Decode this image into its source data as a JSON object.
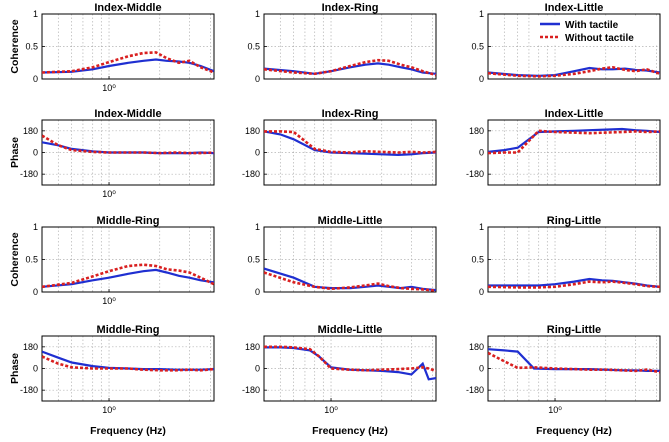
{
  "colors": {
    "with_tactile": "#1f2fd1",
    "without_tactile": "#d92020",
    "grid": "#b3b3b3",
    "axis": "#000000"
  },
  "legend": {
    "with_label": "With tactile",
    "without_label": "Without tactile",
    "placement": "top-right of Index-Little panel"
  },
  "chart_data": [
    {
      "type": "line",
      "id": "coh-index-middle",
      "title": "Index-Middle",
      "ylabel": "Coherence",
      "xlabel": "",
      "xscale": "log",
      "xlim": [
        0.4,
        4.2
      ],
      "ylim": [
        0,
        1
      ],
      "yticks": [
        0,
        0.5,
        1
      ],
      "ytick_labels": [
        "0",
        "0.5",
        "1"
      ],
      "xtick_labels": [
        "10⁰"
      ],
      "x": [
        0.4,
        0.6,
        0.8,
        1.0,
        1.3,
        1.6,
        1.9,
        2.2,
        2.6,
        3.0,
        3.5,
        4.2
      ],
      "series": [
        {
          "name": "With tactile",
          "values": [
            0.1,
            0.11,
            0.15,
            0.2,
            0.25,
            0.28,
            0.3,
            0.28,
            0.27,
            0.25,
            0.2,
            0.12
          ]
        },
        {
          "name": "Without tactile",
          "values": [
            0.1,
            0.12,
            0.18,
            0.26,
            0.35,
            0.4,
            0.41,
            0.32,
            0.25,
            0.28,
            0.18,
            0.1
          ]
        }
      ]
    },
    {
      "type": "line",
      "id": "coh-index-ring",
      "title": "Index-Ring",
      "ylabel": "",
      "xlabel": "",
      "xscale": "log",
      "xlim": [
        0.4,
        4.2
      ],
      "ylim": [
        0,
        1
      ],
      "yticks": [
        0,
        0.5,
        1
      ],
      "ytick_labels": [
        "0",
        "0.5",
        "1"
      ],
      "xtick_labels": [],
      "x": [
        0.4,
        0.6,
        0.8,
        1.0,
        1.3,
        1.6,
        1.9,
        2.2,
        2.6,
        3.0,
        3.5,
        4.2
      ],
      "series": [
        {
          "name": "With tactile",
          "values": [
            0.16,
            0.12,
            0.08,
            0.12,
            0.18,
            0.22,
            0.24,
            0.22,
            0.18,
            0.15,
            0.1,
            0.08
          ]
        },
        {
          "name": "Without tactile",
          "values": [
            0.15,
            0.1,
            0.08,
            0.12,
            0.2,
            0.26,
            0.29,
            0.28,
            0.22,
            0.18,
            0.12,
            0.06
          ]
        }
      ]
    },
    {
      "type": "line",
      "id": "coh-index-little",
      "title": "Index-Little",
      "ylabel": "",
      "xlabel": "",
      "xscale": "log",
      "xlim": [
        0.4,
        4.2
      ],
      "ylim": [
        0,
        1
      ],
      "yticks": [
        0,
        0.5,
        1
      ],
      "ytick_labels": [
        "0",
        "0.5",
        "1"
      ],
      "xtick_labels": [],
      "legend": true,
      "x": [
        0.4,
        0.6,
        0.8,
        1.0,
        1.3,
        1.6,
        1.9,
        2.2,
        2.6,
        3.0,
        3.5,
        4.2
      ],
      "series": [
        {
          "name": "With tactile",
          "values": [
            0.1,
            0.06,
            0.05,
            0.06,
            0.12,
            0.17,
            0.15,
            0.15,
            0.16,
            0.14,
            0.13,
            0.1
          ]
        },
        {
          "name": "Without tactile",
          "values": [
            0.09,
            0.05,
            0.04,
            0.05,
            0.08,
            0.12,
            0.16,
            0.18,
            0.14,
            0.12,
            0.15,
            0.08
          ]
        }
      ]
    },
    {
      "type": "line",
      "id": "phase-index-middle",
      "title": "Index-Middle",
      "ylabel": "Phase",
      "xlabel": "",
      "xscale": "log",
      "xlim": [
        0.4,
        4.2
      ],
      "ylim": [
        -270,
        270
      ],
      "yticks": [
        -180,
        0,
        180
      ],
      "ytick_labels": [
        "-180",
        "0",
        "180"
      ],
      "xtick_labels": [
        "10⁰"
      ],
      "x": [
        0.4,
        0.5,
        0.6,
        0.8,
        1.0,
        1.3,
        1.6,
        2.0,
        2.5,
        3.0,
        3.5,
        4.2
      ],
      "series": [
        {
          "name": "With tactile",
          "values": [
            85,
            60,
            30,
            10,
            0,
            0,
            0,
            -5,
            -5,
            -5,
            0,
            -5
          ]
        },
        {
          "name": "Without tactile",
          "values": [
            140,
            60,
            20,
            5,
            0,
            0,
            0,
            -5,
            0,
            -5,
            -5,
            0
          ]
        }
      ]
    },
    {
      "type": "line",
      "id": "phase-index-ring",
      "title": "Index-Ring",
      "ylabel": "",
      "xlabel": "",
      "xscale": "log",
      "xlim": [
        0.4,
        4.2
      ],
      "ylim": [
        -270,
        270
      ],
      "yticks": [
        -180,
        0,
        180
      ],
      "ytick_labels": [
        "-180",
        "0",
        "180"
      ],
      "xtick_labels": [],
      "x": [
        0.4,
        0.5,
        0.6,
        0.8,
        1.0,
        1.3,
        1.6,
        2.0,
        2.5,
        3.0,
        3.5,
        4.2
      ],
      "series": [
        {
          "name": "With tactile",
          "values": [
            175,
            150,
            110,
            20,
            0,
            -5,
            -10,
            -15,
            -20,
            -15,
            -5,
            0
          ]
        },
        {
          "name": "Without tactile",
          "values": [
            175,
            175,
            170,
            30,
            5,
            0,
            10,
            5,
            0,
            5,
            0,
            5
          ]
        }
      ]
    },
    {
      "type": "line",
      "id": "phase-index-little",
      "title": "Index-Little",
      "ylabel": "",
      "xlabel": "",
      "xscale": "log",
      "xlim": [
        0.4,
        4.2
      ],
      "ylim": [
        -270,
        270
      ],
      "yticks": [
        -180,
        0,
        180
      ],
      "ytick_labels": [
        "-180",
        "0",
        "180"
      ],
      "xtick_labels": [],
      "x": [
        0.4,
        0.5,
        0.6,
        0.8,
        1.0,
        1.3,
        1.6,
        2.0,
        2.5,
        3.0,
        3.5,
        4.2
      ],
      "series": [
        {
          "name": "With tactile",
          "values": [
            5,
            20,
            40,
            170,
            175,
            180,
            185,
            190,
            195,
            185,
            180,
            170
          ]
        },
        {
          "name": "Without tactile",
          "values": [
            -5,
            0,
            0,
            180,
            170,
            165,
            160,
            165,
            170,
            175,
            170,
            175
          ]
        }
      ]
    },
    {
      "type": "line",
      "id": "coh-middle-ring",
      "title": "Middle-Ring",
      "ylabel": "Coherence",
      "xlabel": "",
      "xscale": "log",
      "xlim": [
        0.4,
        4.2
      ],
      "ylim": [
        0,
        1
      ],
      "yticks": [
        0,
        0.5,
        1
      ],
      "ytick_labels": [
        "0",
        "0.5",
        "1"
      ],
      "xtick_labels": [
        "10⁰"
      ],
      "x": [
        0.4,
        0.6,
        0.8,
        1.0,
        1.3,
        1.6,
        1.9,
        2.2,
        2.6,
        3.0,
        3.5,
        4.2
      ],
      "series": [
        {
          "name": "With tactile",
          "values": [
            0.08,
            0.12,
            0.18,
            0.22,
            0.28,
            0.32,
            0.34,
            0.3,
            0.25,
            0.22,
            0.18,
            0.15
          ]
        },
        {
          "name": "Without tactile",
          "values": [
            0.08,
            0.14,
            0.24,
            0.32,
            0.4,
            0.42,
            0.4,
            0.35,
            0.33,
            0.3,
            0.22,
            0.12
          ]
        }
      ]
    },
    {
      "type": "line",
      "id": "coh-middle-little",
      "title": "Middle-Little",
      "ylabel": "",
      "xlabel": "",
      "xscale": "log",
      "xlim": [
        0.4,
        4.2
      ],
      "ylim": [
        0,
        1
      ],
      "yticks": [
        0,
        0.5,
        1
      ],
      "ytick_labels": [
        "0",
        "0.5",
        "1"
      ],
      "xtick_labels": [],
      "x": [
        0.4,
        0.6,
        0.8,
        1.0,
        1.3,
        1.6,
        1.9,
        2.2,
        2.6,
        3.0,
        3.5,
        4.2
      ],
      "series": [
        {
          "name": "With tactile",
          "values": [
            0.36,
            0.22,
            0.08,
            0.06,
            0.06,
            0.08,
            0.1,
            0.08,
            0.06,
            0.08,
            0.05,
            0.03
          ]
        },
        {
          "name": "Without tactile",
          "values": [
            0.3,
            0.15,
            0.08,
            0.05,
            0.07,
            0.1,
            0.13,
            0.09,
            0.06,
            0.05,
            0.04,
            0.02
          ]
        }
      ]
    },
    {
      "type": "line",
      "id": "coh-ring-little",
      "title": "Ring-Little",
      "ylabel": "",
      "xlabel": "",
      "xscale": "log",
      "xlim": [
        0.4,
        4.2
      ],
      "ylim": [
        0,
        1
      ],
      "yticks": [
        0,
        0.5,
        1
      ],
      "ytick_labels": [
        "0",
        "0.5",
        "1"
      ],
      "xtick_labels": [],
      "x": [
        0.4,
        0.6,
        0.8,
        1.0,
        1.3,
        1.6,
        1.9,
        2.2,
        2.6,
        3.0,
        3.5,
        4.2
      ],
      "series": [
        {
          "name": "With tactile",
          "values": [
            0.1,
            0.1,
            0.1,
            0.12,
            0.16,
            0.2,
            0.18,
            0.17,
            0.15,
            0.13,
            0.1,
            0.08
          ]
        },
        {
          "name": "Without tactile",
          "values": [
            0.08,
            0.07,
            0.07,
            0.08,
            0.12,
            0.16,
            0.15,
            0.16,
            0.14,
            0.12,
            0.09,
            0.08
          ]
        }
      ]
    },
    {
      "type": "line",
      "id": "phase-middle-ring",
      "title": "Middle-Ring",
      "ylabel": "Phase",
      "xlabel": "Frequency (Hz)",
      "xscale": "log",
      "xlim": [
        0.4,
        4.2
      ],
      "ylim": [
        -270,
        270
      ],
      "yticks": [
        -180,
        0,
        180
      ],
      "ytick_labels": [
        "-180",
        "0",
        "180"
      ],
      "xtick_labels": [
        "10⁰"
      ],
      "x": [
        0.4,
        0.5,
        0.6,
        0.8,
        1.0,
        1.3,
        1.6,
        2.0,
        2.5,
        3.0,
        3.5,
        4.2
      ],
      "series": [
        {
          "name": "With tactile",
          "values": [
            140,
            90,
            50,
            20,
            5,
            0,
            -5,
            -5,
            -10,
            -10,
            -10,
            -5
          ]
        },
        {
          "name": "Without tactile",
          "values": [
            100,
            40,
            10,
            0,
            0,
            0,
            -10,
            -15,
            -15,
            -10,
            -15,
            -5
          ]
        }
      ]
    },
    {
      "type": "line",
      "id": "phase-middle-little",
      "title": "Middle-Little",
      "ylabel": "",
      "xlabel": "Frequency (Hz)",
      "xscale": "log",
      "xlim": [
        0.4,
        4.2
      ],
      "ylim": [
        -270,
        270
      ],
      "yticks": [
        -180,
        0,
        180
      ],
      "ytick_labels": [
        "-180",
        "0",
        "180"
      ],
      "xtick_labels": [
        "10⁰"
      ],
      "x": [
        0.4,
        0.5,
        0.6,
        0.75,
        0.85,
        1.0,
        1.3,
        1.6,
        2.0,
        2.5,
        3.0,
        3.5,
        3.8,
        4.2
      ],
      "series": [
        {
          "name": "With tactile",
          "values": [
            175,
            175,
            170,
            150,
            100,
            10,
            -10,
            -15,
            -20,
            -30,
            -50,
            40,
            -90,
            -80
          ]
        },
        {
          "name": "Without tactile",
          "values": [
            180,
            180,
            175,
            160,
            100,
            0,
            -10,
            -15,
            -10,
            -5,
            0,
            10,
            0,
            -20
          ]
        }
      ]
    },
    {
      "type": "line",
      "id": "phase-ring-little",
      "title": "Ring-Little",
      "ylabel": "",
      "xlabel": "Frequency (Hz)",
      "xscale": "log",
      "xlim": [
        0.4,
        4.2
      ],
      "ylim": [
        -270,
        270
      ],
      "yticks": [
        -180,
        0,
        180
      ],
      "ytick_labels": [
        "-180",
        "0",
        "180"
      ],
      "xtick_labels": [
        "10⁰"
      ],
      "x": [
        0.4,
        0.5,
        0.6,
        0.75,
        1.0,
        1.3,
        1.6,
        2.0,
        2.5,
        3.0,
        3.5,
        4.2
      ],
      "series": [
        {
          "name": "With tactile",
          "values": [
            160,
            150,
            140,
            0,
            -5,
            -5,
            -5,
            -10,
            -15,
            -15,
            -20,
            -20
          ]
        },
        {
          "name": "Without tactile",
          "values": [
            130,
            60,
            5,
            10,
            0,
            -5,
            -10,
            -10,
            -15,
            -20,
            -10,
            -30
          ]
        }
      ]
    }
  ]
}
